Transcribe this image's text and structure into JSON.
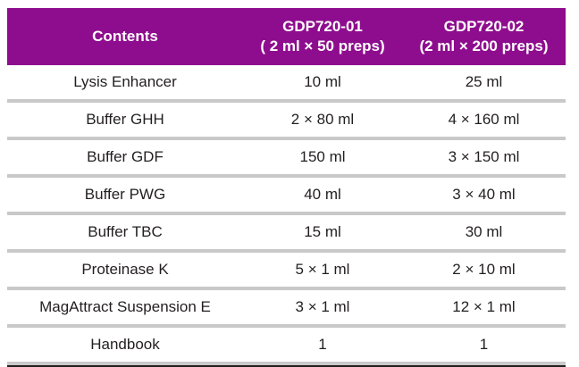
{
  "table": {
    "header": {
      "contents_label": "Contents",
      "kit1_title": "GDP720-01",
      "kit1_subtitle": "( 2 ml × 50 preps)",
      "kit2_title": "GDP720-02",
      "kit2_subtitle": "(2 ml × 200 preps)"
    },
    "rows": [
      {
        "contents": "Lysis Enhancer",
        "kit1": "10 ml",
        "kit2": "25 ml"
      },
      {
        "contents": "Buffer GHH",
        "kit1": "2 × 80 ml",
        "kit2": "4 × 160 ml"
      },
      {
        "contents": "Buffer GDF",
        "kit1": "150 ml",
        "kit2": "3 × 150 ml"
      },
      {
        "contents": "Buffer PWG",
        "kit1": "40 ml",
        "kit2": "3 × 40 ml"
      },
      {
        "contents": "Buffer TBC",
        "kit1": "15 ml",
        "kit2": "30 ml"
      },
      {
        "contents": "Proteinase K",
        "kit1": "5 × 1 ml",
        "kit2": "2 × 10 ml"
      },
      {
        "contents": "MagAttract Suspension E",
        "kit1": "3 × 1 ml",
        "kit2": "12 × 1 ml"
      },
      {
        "contents": "Handbook",
        "kit1": "1",
        "kit2": "1"
      }
    ],
    "colors": {
      "header_background": "#8E0D8E",
      "header_text": "#FFFFFF",
      "body_text": "#231F20",
      "row_divider": "#C9C9C9",
      "bottom_rule": "#231F20"
    }
  }
}
